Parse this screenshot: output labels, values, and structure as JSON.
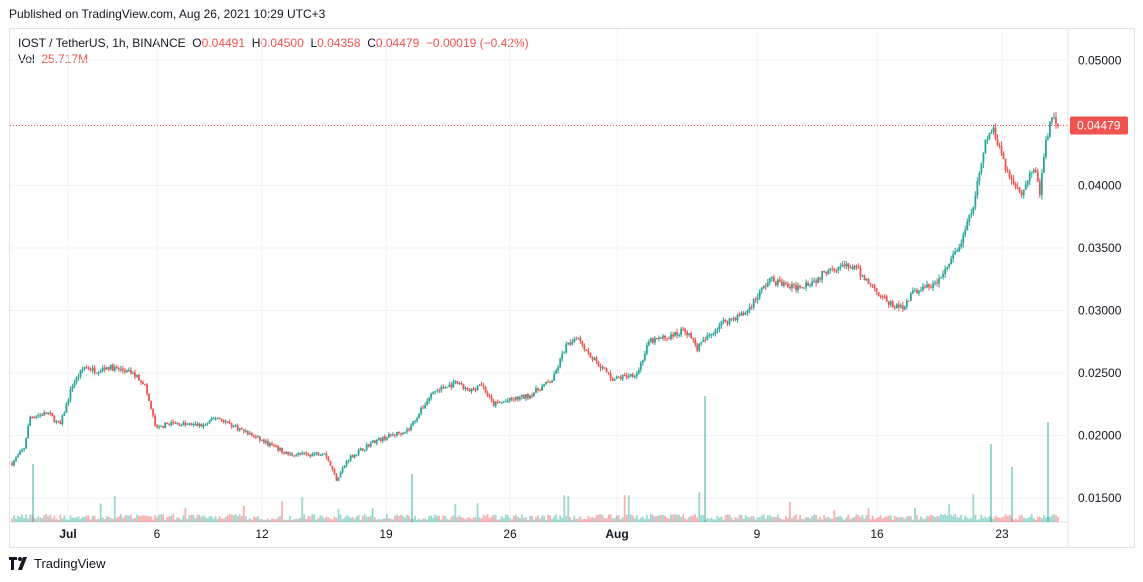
{
  "published": "Published on TradingView.com, Aug 26, 2021 10:29 UTC+3",
  "legend": {
    "symbol": "IOST / TetherUS, 1h, BINANCE",
    "o_label": "O",
    "o_value": "0.04491",
    "h_label": "H",
    "h_value": "0.04500",
    "l_label": "L",
    "l_value": "0.04358",
    "c_label": "C",
    "c_value": "0.04479",
    "change": "−0.00019 (−0.42%)"
  },
  "volume": {
    "label": "Vol",
    "value": "25.717M"
  },
  "last_price_label": "0.04479",
  "footer": {
    "brand": "TradingView",
    "logo_icon": "tradingview-logo-icon"
  },
  "colors": {
    "up": "#26a69a",
    "down": "#ef5350",
    "grid": "#f0f3fa",
    "text": "#131722"
  },
  "chart_data": {
    "type": "candlestick",
    "interval": "1h",
    "y_axis": {
      "ticks": [
        "0.05000",
        "0.04500",
        "0.04000",
        "0.03500",
        "0.03000",
        "0.02500",
        "0.02000",
        "0.01500"
      ],
      "range": [
        0.0131,
        0.0525
      ]
    },
    "x_axis": {
      "ticks": [
        "Jul",
        "6",
        "12",
        "19",
        "26",
        "Aug",
        "9",
        "16",
        "23"
      ],
      "positions_in_days_from_jun29": [
        3,
        8,
        14,
        21,
        28,
        34,
        42,
        49,
        56
      ]
    },
    "x_range_days": [
      0,
      59
    ],
    "last_price": 0.04479,
    "price_path": [
      {
        "day": 0,
        "price": 0.0178
      },
      {
        "day": 1,
        "price": 0.019
      },
      {
        "day": 1.5,
        "price": 0.0215
      },
      {
        "day": 3,
        "price": 0.0218
      },
      {
        "day": 4,
        "price": 0.0208
      },
      {
        "day": 5,
        "price": 0.024
      },
      {
        "day": 6,
        "price": 0.0255
      },
      {
        "day": 7,
        "price": 0.0252
      },
      {
        "day": 8,
        "price": 0.0255
      },
      {
        "day": 10,
        "price": 0.025
      },
      {
        "day": 11,
        "price": 0.0242
      },
      {
        "day": 12,
        "price": 0.0205
      },
      {
        "day": 13,
        "price": 0.021
      },
      {
        "day": 16,
        "price": 0.0208
      },
      {
        "day": 17,
        "price": 0.0215
      },
      {
        "day": 18,
        "price": 0.021
      },
      {
        "day": 21,
        "price": 0.0195
      },
      {
        "day": 23,
        "price": 0.0185
      },
      {
        "day": 25,
        "price": 0.0185
      },
      {
        "day": 26,
        "price": 0.0187
      },
      {
        "day": 27,
        "price": 0.0165
      },
      {
        "day": 28,
        "price": 0.0182
      },
      {
        "day": 30,
        "price": 0.0195
      },
      {
        "day": 33,
        "price": 0.0205
      },
      {
        "day": 35,
        "price": 0.0235
      },
      {
        "day": 37,
        "price": 0.0242
      },
      {
        "day": 38,
        "price": 0.0235
      },
      {
        "day": 39,
        "price": 0.0242
      },
      {
        "day": 40,
        "price": 0.0225
      },
      {
        "day": 43,
        "price": 0.0232
      },
      {
        "day": 45,
        "price": 0.0245
      },
      {
        "day": 46,
        "price": 0.027
      },
      {
        "day": 47,
        "price": 0.028
      },
      {
        "day": 48,
        "price": 0.0265
      },
      {
        "day": 50,
        "price": 0.0245
      },
      {
        "day": 52,
        "price": 0.025
      },
      {
        "day": 53,
        "price": 0.0275
      },
      {
        "day": 55,
        "price": 0.028
      },
      {
        "day": 56,
        "price": 0.0285
      },
      {
        "day": 57,
        "price": 0.027
      },
      {
        "day": 59,
        "price": 0.029
      },
      {
        "day": 61,
        "price": 0.0298
      },
      {
        "day": 63,
        "price": 0.0325
      },
      {
        "day": 65,
        "price": 0.0318
      },
      {
        "day": 67,
        "price": 0.0325
      },
      {
        "day": 68,
        "price": 0.0335
      },
      {
        "day": 70,
        "price": 0.0335
      },
      {
        "day": 72,
        "price": 0.0315
      },
      {
        "day": 73,
        "price": 0.0305
      },
      {
        "day": 74,
        "price": 0.0302
      },
      {
        "day": 75,
        "price": 0.0315
      },
      {
        "day": 77,
        "price": 0.0322
      },
      {
        "day": 79,
        "price": 0.0355
      },
      {
        "day": 80,
        "price": 0.0385
      },
      {
        "day": 81,
        "price": 0.0435
      },
      {
        "day": 81.5,
        "price": 0.0445
      },
      {
        "day": 82,
        "price": 0.0435
      },
      {
        "day": 83,
        "price": 0.0405
      },
      {
        "day": 84,
        "price": 0.0395
      },
      {
        "day": 85,
        "price": 0.0415
      },
      {
        "day": 85.5,
        "price": 0.0395
      },
      {
        "day": 86,
        "price": 0.0435
      },
      {
        "day": 86.5,
        "price": 0.0455
      },
      {
        "day": 87,
        "price": 0.0448
      }
    ]
  }
}
